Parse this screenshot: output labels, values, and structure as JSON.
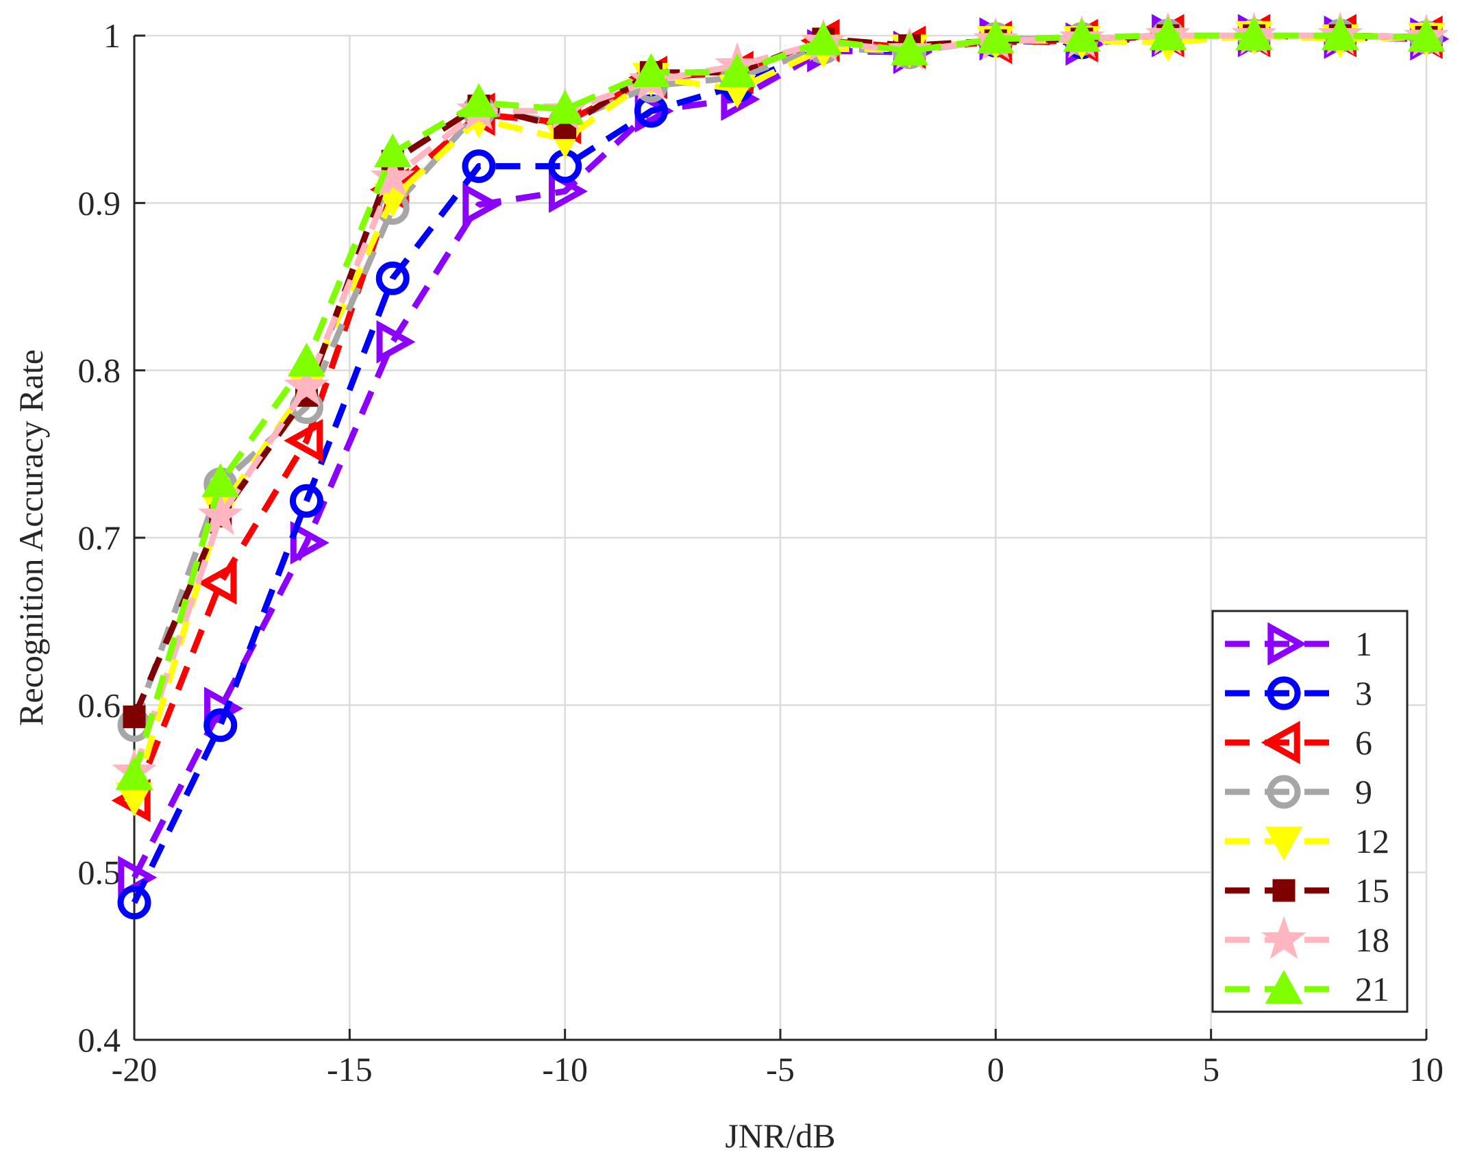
{
  "chart_data": {
    "type": "line",
    "title": "",
    "xlabel": "JNR/dB",
    "ylabel": "Recognition Accuracy Rate",
    "xlim": [
      -20,
      10
    ],
    "ylim": [
      0.4,
      1.0
    ],
    "xticks": [
      -20,
      -15,
      -10,
      -5,
      0,
      5,
      10
    ],
    "xtick_labels": [
      "-20",
      "-15",
      "-10",
      "-5",
      "0",
      "5",
      "10"
    ],
    "yticks": [
      0.4,
      0.5,
      0.6,
      0.7,
      0.8,
      0.9,
      1.0
    ],
    "ytick_labels": [
      "0.4",
      "0.5",
      "0.6",
      "0.7",
      "0.8",
      "0.9",
      "1"
    ],
    "grid": true,
    "legend_position": "bottom-right",
    "x": [
      -20,
      -18,
      -16,
      -14,
      -12,
      -10,
      -8,
      -6,
      -4,
      -2,
      0,
      2,
      4,
      6,
      8,
      10
    ],
    "series": [
      {
        "name": "1",
        "color": "#8b00ff",
        "marker": "triangle-right",
        "values": [
          0.497,
          0.598,
          0.697,
          0.817,
          0.899,
          0.907,
          0.955,
          0.962,
          0.991,
          0.99,
          0.998,
          0.995,
          1.0,
          1.0,
          0.999,
          0.998
        ]
      },
      {
        "name": "3",
        "color": "#0000ff",
        "marker": "circle",
        "values": [
          0.482,
          0.588,
          0.722,
          0.855,
          0.922,
          0.922,
          0.955,
          0.97,
          0.993,
          0.991,
          0.997,
          0.996,
          1.0,
          1.0,
          1.0,
          0.999
        ]
      },
      {
        "name": "6",
        "color": "#ff0000",
        "marker": "triangle-left",
        "values": [
          0.543,
          0.673,
          0.758,
          0.908,
          0.953,
          0.948,
          0.975,
          0.978,
          0.997,
          0.993,
          0.996,
          0.997,
          1.0,
          1.0,
          1.0,
          0.999
        ]
      },
      {
        "name": "9",
        "color": "#a6a6a6",
        "marker": "circle",
        "values": [
          0.588,
          0.732,
          0.778,
          0.897,
          0.955,
          0.948,
          0.97,
          0.975,
          0.993,
          0.99,
          0.998,
          0.998,
          1.0,
          1.0,
          1.0,
          0.999
        ]
      },
      {
        "name": "12",
        "color": "#ffff00",
        "marker": "triangle-down",
        "values": [
          0.545,
          0.717,
          0.79,
          0.903,
          0.95,
          0.938,
          0.975,
          0.968,
          0.992,
          0.992,
          0.997,
          0.997,
          0.996,
          1.0,
          0.998,
          0.999
        ]
      },
      {
        "name": "15",
        "color": "#7f0000",
        "marker": "square",
        "values": [
          0.593,
          0.713,
          0.785,
          0.925,
          0.958,
          0.945,
          0.978,
          0.978,
          0.998,
          0.994,
          0.997,
          0.998,
          1.0,
          1.0,
          1.0,
          0.999
        ]
      },
      {
        "name": "18",
        "color": "#ffb6c1",
        "marker": "star",
        "values": [
          0.56,
          0.713,
          0.79,
          0.915,
          0.955,
          0.955,
          0.973,
          0.982,
          0.996,
          0.991,
          0.997,
          0.998,
          1.0,
          1.0,
          1.0,
          0.999
        ]
      },
      {
        "name": "21",
        "color": "#7fff00",
        "marker": "triangle-up",
        "values": [
          0.558,
          0.733,
          0.805,
          0.93,
          0.96,
          0.956,
          0.978,
          0.978,
          0.997,
          0.991,
          0.998,
          0.999,
          1.0,
          1.0,
          1.0,
          0.999
        ]
      }
    ]
  }
}
